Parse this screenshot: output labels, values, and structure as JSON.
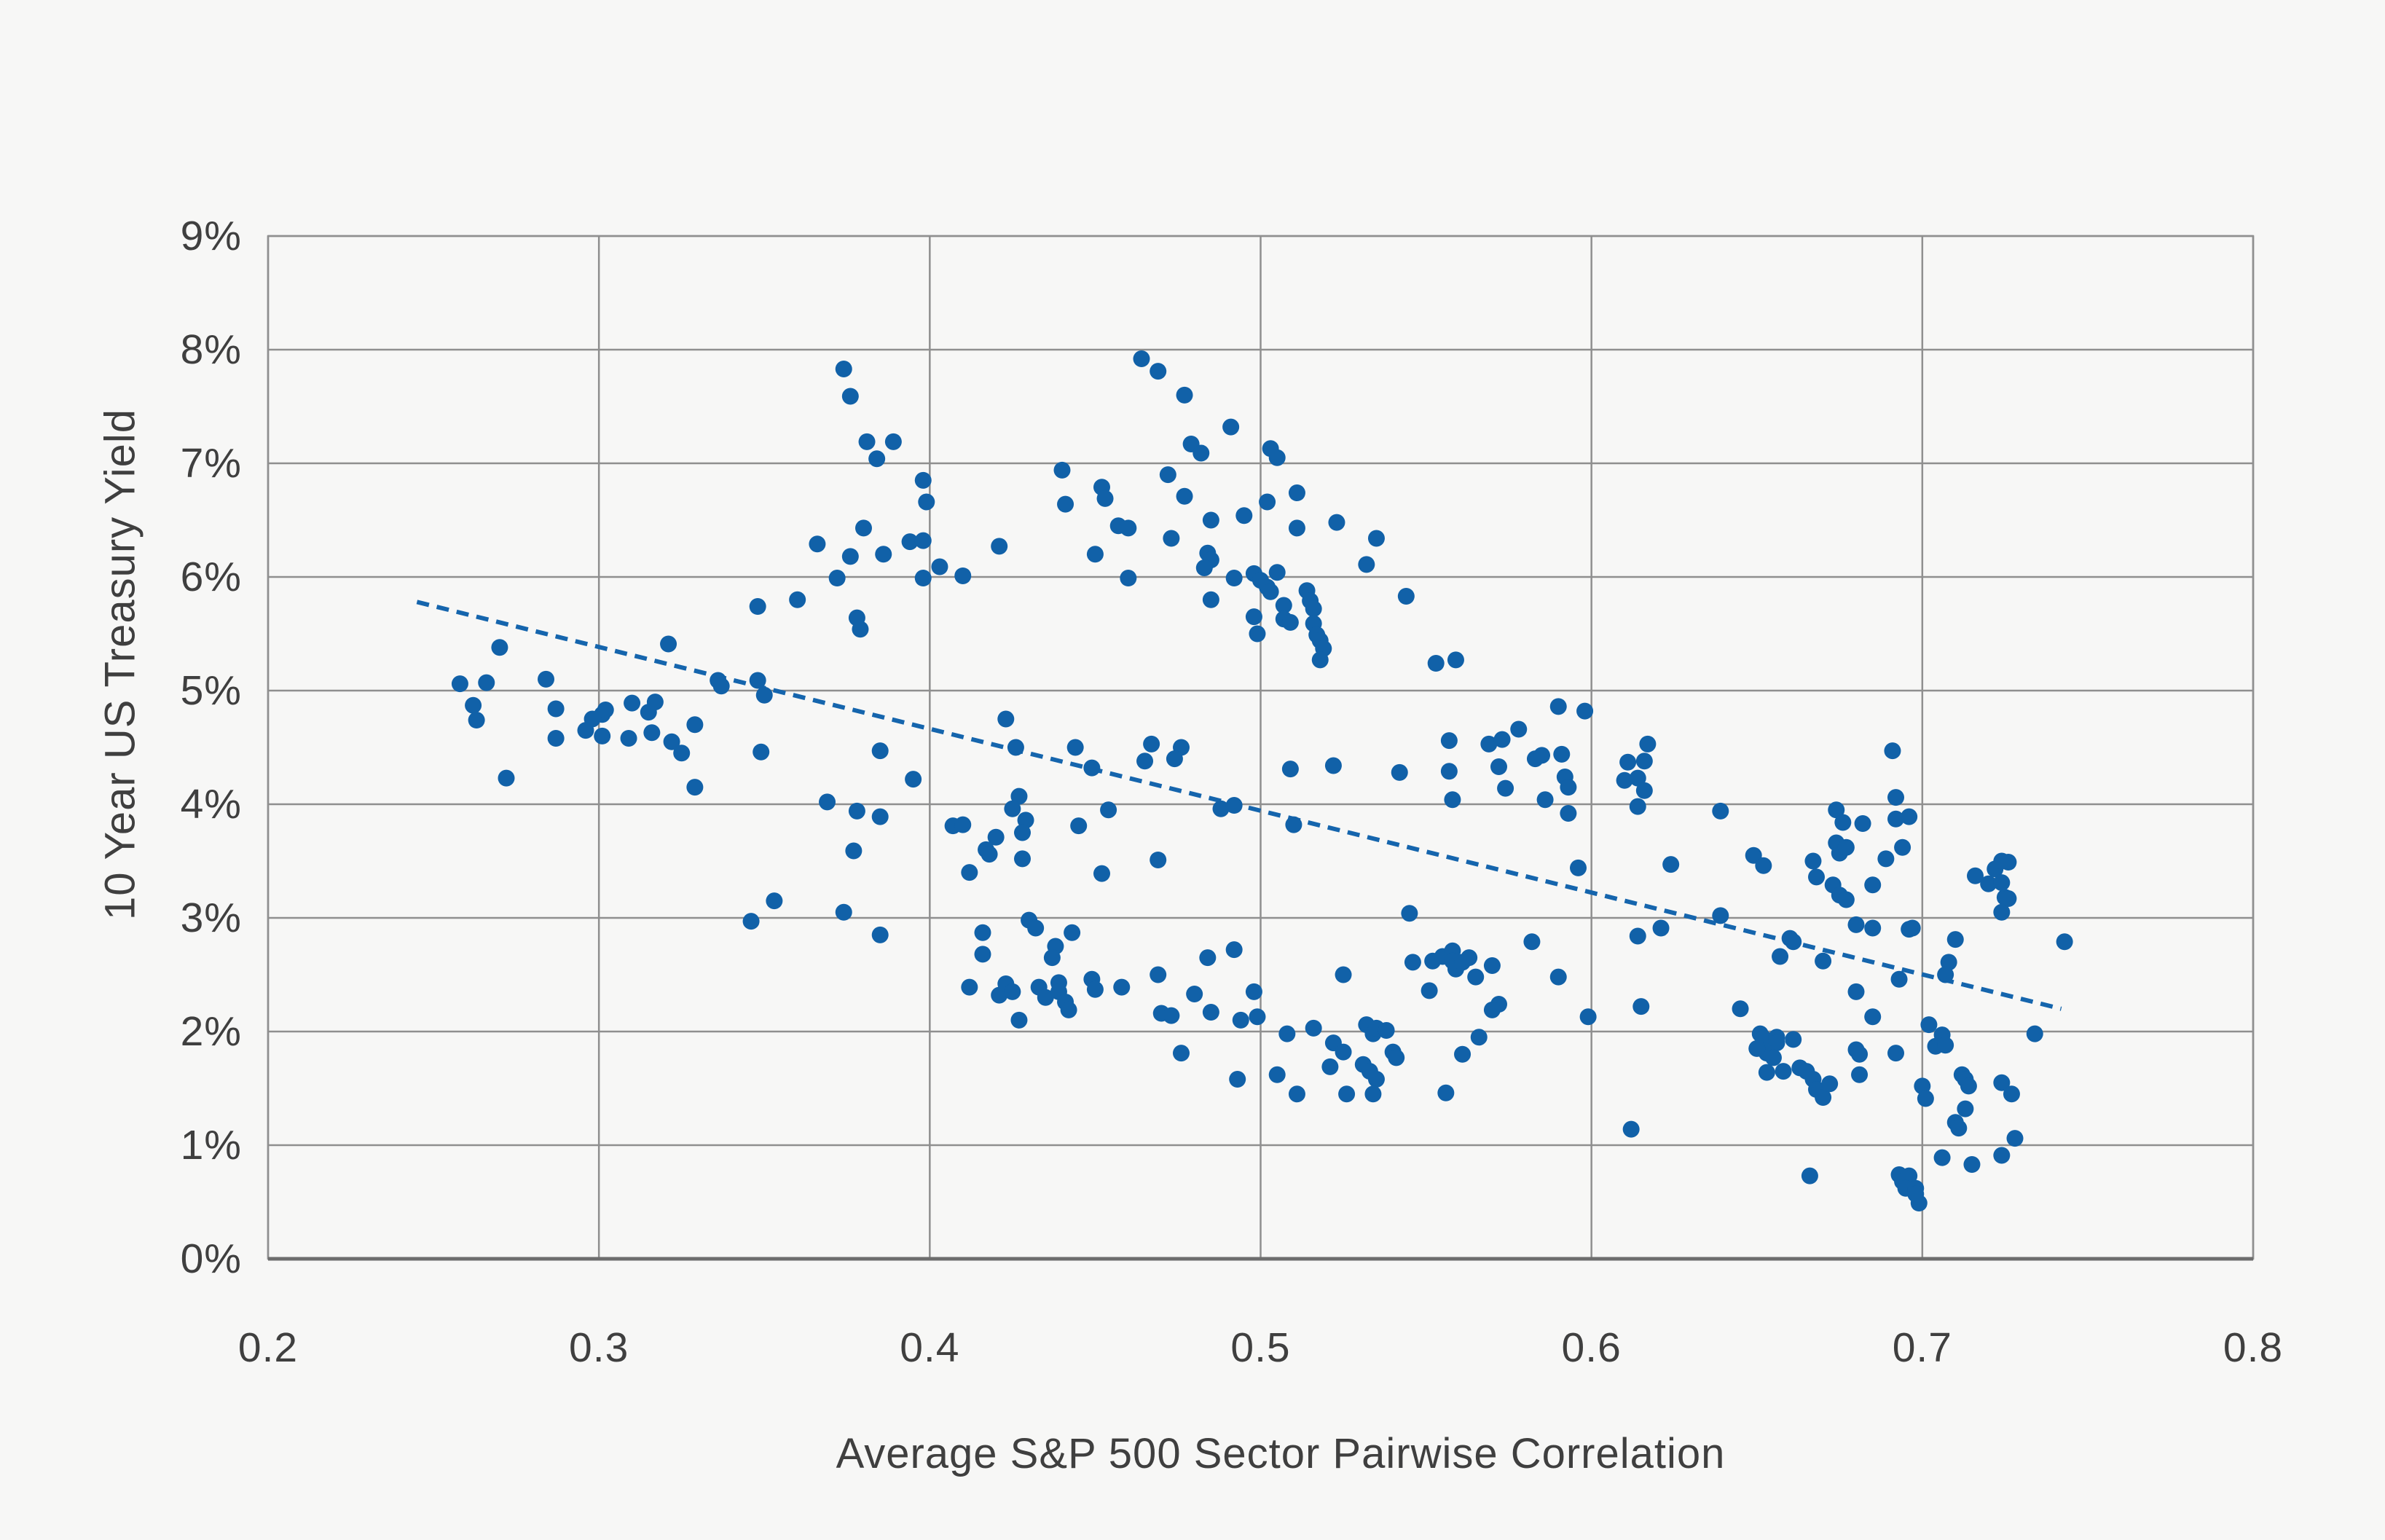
{
  "chart_data": {
    "type": "scatter",
    "title": "",
    "xlabel": "Average S&P 500 Sector Pairwise Correlation",
    "ylabel": "10 Year US Treasury Yield",
    "xlim": [
      0.2,
      0.8
    ],
    "ylim": [
      0,
      9
    ],
    "grid": true,
    "legend_position": "none",
    "x_tick_values": [
      0.2,
      0.3,
      0.4,
      0.5,
      0.6,
      0.7,
      0.8
    ],
    "x_tick_labels": [
      "0.2",
      "0.3",
      "0.4",
      "0.5",
      "0.6",
      "0.7",
      "0.8"
    ],
    "y_tick_values": [
      0,
      1,
      2,
      3,
      4,
      5,
      6,
      7,
      8,
      9
    ],
    "y_tick_labels": [
      "0%",
      "1%",
      "2%",
      "3%",
      "4%",
      "5%",
      "6%",
      "7%",
      "8%",
      "9%"
    ],
    "point_color": "#1161a8",
    "grid_color": "#8f8f8f",
    "axis_color": "#6d6d6d",
    "background_color": "#f7f7f6",
    "trend_line": {
      "style": "dashed",
      "color": "#1565ad",
      "x1": 0.245,
      "y1": 5.78,
      "x2": 0.742,
      "y2": 2.2
    },
    "points": [
      [
        0.374,
        7.83
      ],
      [
        0.376,
        7.59
      ],
      [
        0.381,
        7.19
      ],
      [
        0.389,
        7.19
      ],
      [
        0.384,
        7.04
      ],
      [
        0.398,
        6.85
      ],
      [
        0.399,
        6.66
      ],
      [
        0.38,
        6.43
      ],
      [
        0.366,
        6.29
      ],
      [
        0.376,
        6.18
      ],
      [
        0.386,
        6.2
      ],
      [
        0.394,
        6.31
      ],
      [
        0.398,
        6.32
      ],
      [
        0.372,
        5.99
      ],
      [
        0.398,
        5.99
      ],
      [
        0.348,
        5.74
      ],
      [
        0.36,
        5.8
      ],
      [
        0.378,
        5.64
      ],
      [
        0.379,
        5.54
      ],
      [
        0.27,
        5.38
      ],
      [
        0.258,
        5.06
      ],
      [
        0.266,
        5.07
      ],
      [
        0.284,
        5.1
      ],
      [
        0.262,
        4.87
      ],
      [
        0.263,
        4.74
      ],
      [
        0.287,
        4.84
      ],
      [
        0.298,
        4.75
      ],
      [
        0.301,
        4.79
      ],
      [
        0.302,
        4.83
      ],
      [
        0.296,
        4.65
      ],
      [
        0.301,
        4.6
      ],
      [
        0.31,
        4.89
      ],
      [
        0.315,
        4.81
      ],
      [
        0.317,
        4.9
      ],
      [
        0.329,
        4.7
      ],
      [
        0.336,
        5.09
      ],
      [
        0.337,
        5.04
      ],
      [
        0.35,
        4.96
      ],
      [
        0.348,
        5.09
      ],
      [
        0.321,
        5.41
      ],
      [
        0.287,
        4.58
      ],
      [
        0.309,
        4.58
      ],
      [
        0.316,
        4.63
      ],
      [
        0.322,
        4.55
      ],
      [
        0.464,
        7.92
      ],
      [
        0.469,
        7.81
      ],
      [
        0.477,
        7.6
      ],
      [
        0.491,
        7.32
      ],
      [
        0.479,
        7.17
      ],
      [
        0.482,
        7.09
      ],
      [
        0.503,
        7.13
      ],
      [
        0.505,
        7.05
      ],
      [
        0.44,
        6.94
      ],
      [
        0.472,
        6.9
      ],
      [
        0.452,
        6.79
      ],
      [
        0.453,
        6.69
      ],
      [
        0.441,
        6.64
      ],
      [
        0.477,
        6.71
      ],
      [
        0.511,
        6.74
      ],
      [
        0.502,
        6.66
      ],
      [
        0.495,
        6.54
      ],
      [
        0.485,
        6.5
      ],
      [
        0.523,
        6.48
      ],
      [
        0.457,
        6.45
      ],
      [
        0.46,
        6.43
      ],
      [
        0.511,
        6.43
      ],
      [
        0.421,
        6.27
      ],
      [
        0.473,
        6.34
      ],
      [
        0.535,
        6.34
      ],
      [
        0.45,
        6.2
      ],
      [
        0.484,
        6.21
      ],
      [
        0.485,
        6.15
      ],
      [
        0.483,
        6.08
      ],
      [
        0.403,
        6.09
      ],
      [
        0.41,
        6.01
      ],
      [
        0.532,
        6.11
      ],
      [
        0.46,
        5.99
      ],
      [
        0.492,
        5.99
      ],
      [
        0.498,
        6.03
      ],
      [
        0.5,
        5.97
      ],
      [
        0.502,
        5.91
      ],
      [
        0.505,
        6.04
      ],
      [
        0.503,
        5.87
      ],
      [
        0.485,
        5.8
      ],
      [
        0.514,
        5.88
      ],
      [
        0.515,
        5.79
      ],
      [
        0.516,
        5.72
      ],
      [
        0.498,
        5.65
      ],
      [
        0.507,
        5.75
      ],
      [
        0.507,
        5.63
      ],
      [
        0.509,
        5.6
      ],
      [
        0.499,
        5.5
      ],
      [
        0.516,
        5.59
      ],
      [
        0.517,
        5.49
      ],
      [
        0.518,
        5.44
      ],
      [
        0.519,
        5.37
      ],
      [
        0.518,
        5.27
      ],
      [
        0.544,
        5.83
      ],
      [
        0.553,
        5.24
      ],
      [
        0.559,
        5.27
      ],
      [
        0.59,
        4.86
      ],
      [
        0.598,
        4.82
      ],
      [
        0.423,
        4.75
      ],
      [
        0.426,
        4.5
      ],
      [
        0.444,
        4.5
      ],
      [
        0.467,
        4.53
      ],
      [
        0.476,
        4.5
      ],
      [
        0.557,
        4.56
      ],
      [
        0.569,
        4.53
      ],
      [
        0.573,
        4.57
      ],
      [
        0.578,
        4.66
      ],
      [
        0.617,
        4.53
      ],
      [
        0.272,
        4.23
      ],
      [
        0.325,
        4.45
      ],
      [
        0.349,
        4.46
      ],
      [
        0.385,
        4.47
      ],
      [
        0.395,
        4.22
      ],
      [
        0.329,
        4.15
      ],
      [
        0.369,
        4.02
      ],
      [
        0.378,
        3.94
      ],
      [
        0.385,
        3.89
      ],
      [
        0.377,
        3.59
      ],
      [
        0.353,
        3.15
      ],
      [
        0.346,
        2.97
      ],
      [
        0.374,
        3.05
      ],
      [
        0.385,
        2.85
      ],
      [
        0.449,
        4.32
      ],
      [
        0.465,
        4.38
      ],
      [
        0.474,
        4.4
      ],
      [
        0.509,
        4.31
      ],
      [
        0.522,
        4.34
      ],
      [
        0.542,
        4.28
      ],
      [
        0.557,
        4.29
      ],
      [
        0.572,
        4.33
      ],
      [
        0.583,
        4.4
      ],
      [
        0.585,
        4.43
      ],
      [
        0.591,
        4.44
      ],
      [
        0.592,
        4.24
      ],
      [
        0.593,
        4.15
      ],
      [
        0.574,
        4.14
      ],
      [
        0.558,
        4.04
      ],
      [
        0.586,
        4.04
      ],
      [
        0.593,
        3.92
      ],
      [
        0.427,
        4.07
      ],
      [
        0.425,
        3.96
      ],
      [
        0.454,
        3.95
      ],
      [
        0.488,
        3.96
      ],
      [
        0.492,
        3.99
      ],
      [
        0.429,
        3.86
      ],
      [
        0.407,
        3.81
      ],
      [
        0.41,
        3.82
      ],
      [
        0.445,
        3.81
      ],
      [
        0.51,
        3.82
      ],
      [
        0.428,
        3.75
      ],
      [
        0.42,
        3.71
      ],
      [
        0.417,
        3.6
      ],
      [
        0.418,
        3.56
      ],
      [
        0.428,
        3.52
      ],
      [
        0.469,
        3.51
      ],
      [
        0.412,
        3.4
      ],
      [
        0.452,
        3.39
      ],
      [
        0.545,
        3.04
      ],
      [
        0.596,
        3.44
      ],
      [
        0.416,
        2.87
      ],
      [
        0.416,
        2.68
      ],
      [
        0.43,
        2.98
      ],
      [
        0.432,
        2.91
      ],
      [
        0.443,
        2.87
      ],
      [
        0.438,
        2.75
      ],
      [
        0.437,
        2.65
      ],
      [
        0.412,
        2.39
      ],
      [
        0.421,
        2.32
      ],
      [
        0.423,
        2.42
      ],
      [
        0.425,
        2.35
      ],
      [
        0.433,
        2.39
      ],
      [
        0.435,
        2.3
      ],
      [
        0.439,
        2.43
      ],
      [
        0.439,
        2.35
      ],
      [
        0.441,
        2.26
      ],
      [
        0.442,
        2.19
      ],
      [
        0.427,
        2.1
      ],
      [
        0.449,
        2.46
      ],
      [
        0.45,
        2.37
      ],
      [
        0.458,
        2.39
      ],
      [
        0.469,
        2.5
      ],
      [
        0.47,
        2.16
      ],
      [
        0.473,
        2.14
      ],
      [
        0.48,
        2.33
      ],
      [
        0.484,
        2.65
      ],
      [
        0.485,
        2.17
      ],
      [
        0.492,
        2.72
      ],
      [
        0.494,
        2.1
      ],
      [
        0.498,
        2.35
      ],
      [
        0.499,
        2.13
      ],
      [
        0.508,
        1.98
      ],
      [
        0.516,
        2.03
      ],
      [
        0.525,
        2.5
      ],
      [
        0.476,
        1.81
      ],
      [
        0.522,
        1.9
      ],
      [
        0.525,
        1.82
      ],
      [
        0.532,
        2.06
      ],
      [
        0.534,
        1.98
      ],
      [
        0.535,
        2.03
      ],
      [
        0.538,
        2.01
      ],
      [
        0.521,
        1.69
      ],
      [
        0.531,
        1.71
      ],
      [
        0.533,
        1.65
      ],
      [
        0.535,
        1.58
      ],
      [
        0.54,
        1.82
      ],
      [
        0.541,
        1.77
      ],
      [
        0.493,
        1.58
      ],
      [
        0.505,
        1.62
      ],
      [
        0.511,
        1.45
      ],
      [
        0.526,
        1.45
      ],
      [
        0.534,
        1.45
      ],
      [
        0.556,
        1.46
      ],
      [
        0.566,
        1.95
      ],
      [
        0.561,
        1.8
      ],
      [
        0.551,
        2.36
      ],
      [
        0.546,
        2.61
      ],
      [
        0.552,
        2.62
      ],
      [
        0.555,
        2.66
      ],
      [
        0.558,
        2.71
      ],
      [
        0.558,
        2.62
      ],
      [
        0.559,
        2.55
      ],
      [
        0.561,
        2.61
      ],
      [
        0.563,
        2.65
      ],
      [
        0.565,
        2.48
      ],
      [
        0.57,
        2.58
      ],
      [
        0.572,
        2.24
      ],
      [
        0.57,
        2.19
      ],
      [
        0.582,
        2.79
      ],
      [
        0.59,
        2.48
      ],
      [
        0.599,
        2.13
      ],
      [
        0.611,
        4.37
      ],
      [
        0.616,
        4.38
      ],
      [
        0.61,
        4.21
      ],
      [
        0.614,
        4.23
      ],
      [
        0.616,
        4.12
      ],
      [
        0.614,
        3.98
      ],
      [
        0.639,
        3.94
      ],
      [
        0.692,
        4.06
      ],
      [
        0.691,
        4.47
      ],
      [
        0.674,
        3.95
      ],
      [
        0.676,
        3.84
      ],
      [
        0.682,
        3.83
      ],
      [
        0.692,
        3.87
      ],
      [
        0.696,
        3.89
      ],
      [
        0.624,
        3.47
      ],
      [
        0.649,
        3.55
      ],
      [
        0.652,
        3.46
      ],
      [
        0.667,
        3.5
      ],
      [
        0.668,
        3.36
      ],
      [
        0.674,
        3.66
      ],
      [
        0.675,
        3.57
      ],
      [
        0.677,
        3.62
      ],
      [
        0.673,
        3.29
      ],
      [
        0.675,
        3.2
      ],
      [
        0.677,
        3.16
      ],
      [
        0.685,
        3.29
      ],
      [
        0.694,
        3.62
      ],
      [
        0.689,
        3.52
      ],
      [
        0.697,
        2.91
      ],
      [
        0.716,
        3.37
      ],
      [
        0.722,
        3.43
      ],
      [
        0.724,
        3.5
      ],
      [
        0.726,
        3.49
      ],
      [
        0.72,
        3.3
      ],
      [
        0.724,
        3.31
      ],
      [
        0.725,
        3.18
      ],
      [
        0.726,
        3.17
      ],
      [
        0.724,
        3.05
      ],
      [
        0.639,
        3.02
      ],
      [
        0.614,
        2.84
      ],
      [
        0.621,
        2.91
      ],
      [
        0.66,
        2.82
      ],
      [
        0.661,
        2.79
      ],
      [
        0.657,
        2.66
      ],
      [
        0.67,
        2.62
      ],
      [
        0.68,
        2.94
      ],
      [
        0.685,
        2.91
      ],
      [
        0.696,
        2.9
      ],
      [
        0.71,
        2.81
      ],
      [
        0.743,
        2.79
      ],
      [
        0.708,
        2.61
      ],
      [
        0.707,
        2.5
      ],
      [
        0.693,
        2.46
      ],
      [
        0.68,
        2.35
      ],
      [
        0.685,
        2.13
      ],
      [
        0.702,
        2.06
      ],
      [
        0.615,
        2.22
      ],
      [
        0.645,
        2.2
      ],
      [
        0.612,
        1.14
      ],
      [
        0.734,
        1.98
      ],
      [
        0.706,
        1.97
      ],
      [
        0.704,
        1.87
      ],
      [
        0.707,
        1.88
      ],
      [
        0.651,
        1.98
      ],
      [
        0.652,
        1.94
      ],
      [
        0.656,
        1.95
      ],
      [
        0.656,
        1.9
      ],
      [
        0.653,
        1.81
      ],
      [
        0.65,
        1.85
      ],
      [
        0.655,
        1.77
      ],
      [
        0.661,
        1.93
      ],
      [
        0.653,
        1.64
      ],
      [
        0.658,
        1.65
      ],
      [
        0.663,
        1.68
      ],
      [
        0.665,
        1.65
      ],
      [
        0.68,
        1.84
      ],
      [
        0.681,
        1.8
      ],
      [
        0.681,
        1.62
      ],
      [
        0.692,
        1.81
      ],
      [
        0.667,
        1.58
      ],
      [
        0.668,
        1.49
      ],
      [
        0.67,
        1.42
      ],
      [
        0.672,
        1.54
      ],
      [
        0.7,
        1.52
      ],
      [
        0.701,
        1.41
      ],
      [
        0.712,
        1.62
      ],
      [
        0.713,
        1.58
      ],
      [
        0.714,
        1.52
      ],
      [
        0.713,
        1.32
      ],
      [
        0.71,
        1.2
      ],
      [
        0.711,
        1.15
      ],
      [
        0.724,
        1.55
      ],
      [
        0.727,
        1.45
      ],
      [
        0.728,
        1.06
      ],
      [
        0.706,
        0.89
      ],
      [
        0.715,
        0.83
      ],
      [
        0.724,
        0.91
      ],
      [
        0.666,
        0.73
      ],
      [
        0.693,
        0.74
      ],
      [
        0.694,
        0.68
      ],
      [
        0.696,
        0.73
      ],
      [
        0.695,
        0.62
      ],
      [
        0.698,
        0.62
      ],
      [
        0.699,
        0.49
      ],
      [
        0.698,
        0.57
      ]
    ]
  }
}
